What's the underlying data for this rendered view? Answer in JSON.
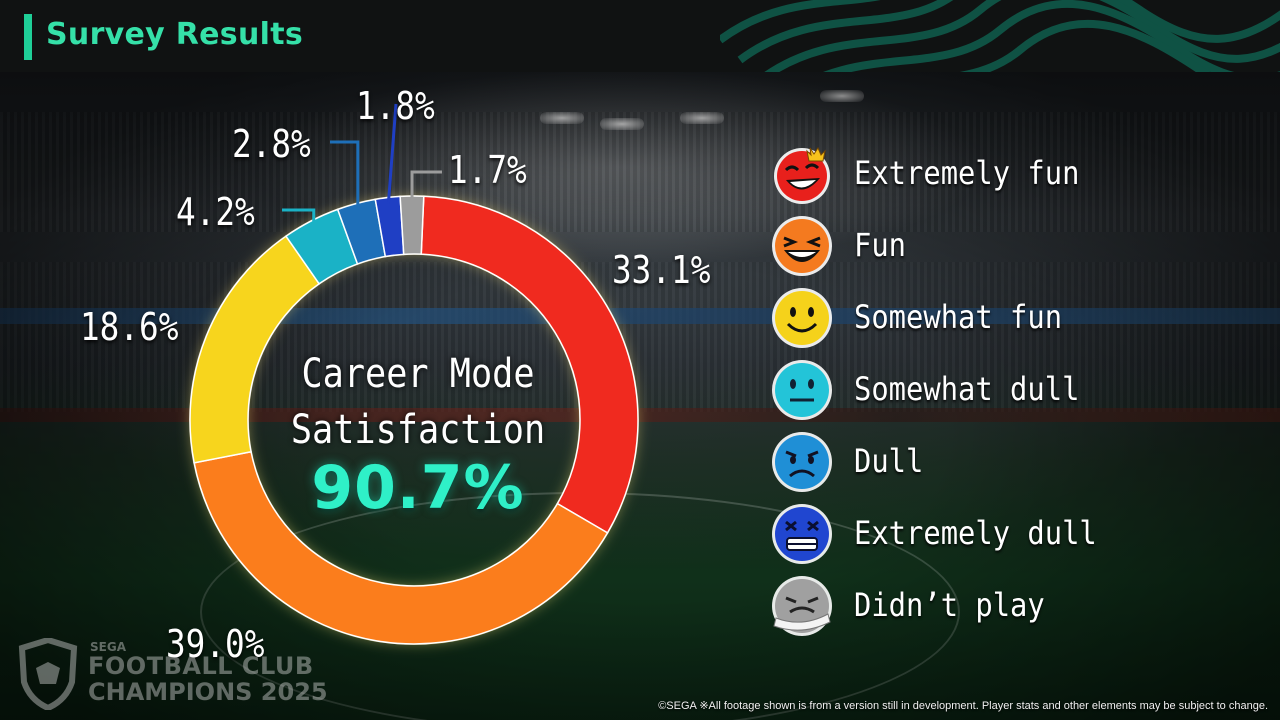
{
  "header": {
    "title": "Survey Results"
  },
  "center": {
    "title_line1": "Career Mode",
    "title_line2": "Satisfaction",
    "value": "90.7%"
  },
  "chart_data": {
    "type": "pie",
    "donut": true,
    "title": "Career Mode Satisfaction",
    "summary_value": "90.7%",
    "categories": [
      "Extremely fun",
      "Fun",
      "Somewhat fun",
      "Somewhat dull",
      "Dull",
      "Extremely dull",
      "Didn't play"
    ],
    "values": [
      33.1,
      39.0,
      18.6,
      4.2,
      2.8,
      1.8,
      1.7
    ],
    "labels": [
      "33.1%",
      "39.0%",
      "18.6%",
      "4.2%",
      "2.8%",
      "1.8%",
      "1.7%"
    ],
    "colors": [
      "#f02a1f",
      "#fb7d1c",
      "#f7d51d",
      "#1ab2c6",
      "#1e6fb8",
      "#1f3fc4",
      "#9c9c9c"
    ],
    "legend_position": "right"
  },
  "legend": [
    {
      "label": "Extremely fun",
      "icon": "crowned-laughing-face-icon",
      "color": "#e8201c"
    },
    {
      "label": "Fun",
      "icon": "laughing-face-icon",
      "color": "#f47a1f"
    },
    {
      "label": "Somewhat fun",
      "icon": "smiling-face-icon",
      "color": "#f5d21b"
    },
    {
      "label": "Somewhat dull",
      "icon": "neutral-face-icon",
      "color": "#23c4d8"
    },
    {
      "label": "Dull",
      "icon": "frowning-face-icon",
      "color": "#1f8fd6"
    },
    {
      "label": "Extremely dull",
      "icon": "grimacing-face-icon",
      "color": "#2046d0"
    },
    {
      "label": "Didn’t play",
      "icon": "bandaged-face-icon",
      "color": "#a0a0a0"
    }
  ],
  "logo": {
    "line1": "SEGA",
    "line2": "FOOTBALL CLUB",
    "line3": "CHAMPIONS 2025"
  },
  "footer": {
    "text": "©SEGA  ※All footage shown is from a version still in development. Player stats and other elements may be subject to change."
  }
}
